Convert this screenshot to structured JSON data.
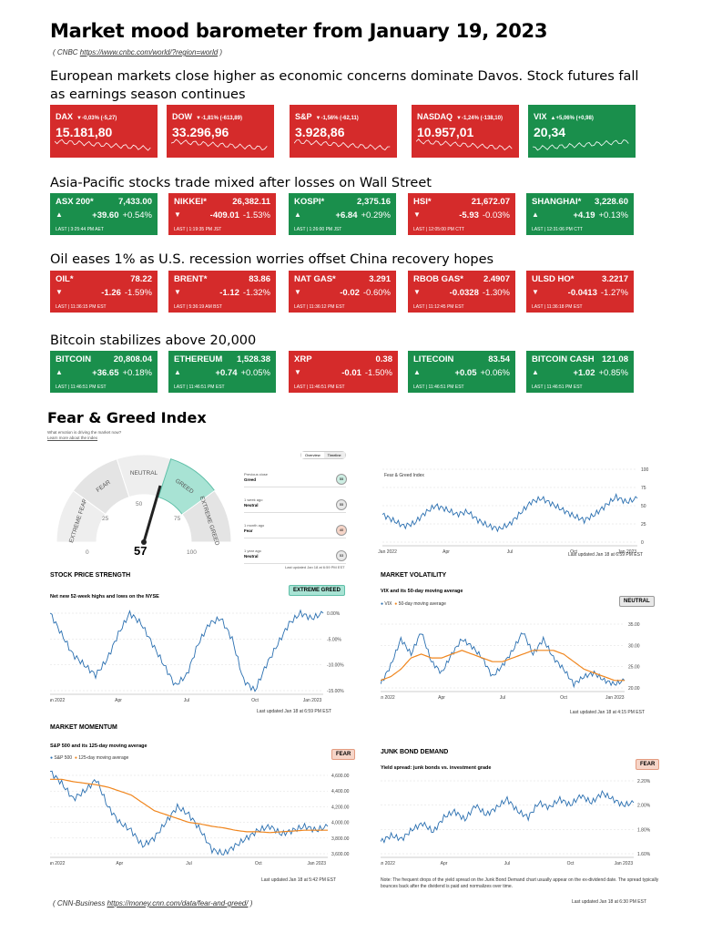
{
  "header": {
    "title": "Market mood barometer from January 19, 2023",
    "source_prefix": "( CNBC ",
    "source_url": "https://www.cnbc.com/world/?region=world",
    "source_suffix": " )"
  },
  "sections": {
    "europe": "European markets close higher as economic concerns dominate Davos. Stock futures fall as earnings season continues",
    "asia": "Asia-Pacific stocks trade mixed after losses on Wall Street",
    "oil": "Oil eases 1% as U.S. recession worries offset China recovery hopes",
    "bitcoin": "Bitcoin stabilizes above 20,000"
  },
  "indices": [
    {
      "name": "DAX",
      "change": "▼-0,03% (-5,27)",
      "value": "15.181,80",
      "color": "red"
    },
    {
      "name": "DOW",
      "change": "▼-1,81% (-613,89)",
      "value": "33.296,96",
      "color": "red"
    },
    {
      "name": "S&P",
      "change": "▼-1,56% (-62,11)",
      "value": "3.928,86",
      "color": "red"
    },
    {
      "name": "NASDAQ",
      "change": "▼-1,24% (-138,10)",
      "value": "10.957,01",
      "color": "red"
    },
    {
      "name": "VIX",
      "change": "▲+5,06% (+0,98)",
      "value": "20,34",
      "color": "green"
    }
  ],
  "asia": [
    {
      "name": "ASX 200*",
      "price": "7,433.00",
      "arrow": "▲",
      "chg": "+39.60",
      "pct": "+0.54%",
      "last": "LAST | 3:25:44 PM AET",
      "color": "green"
    },
    {
      "name": "NIKKEI*",
      "price": "26,382.11",
      "arrow": "▼",
      "chg": "-409.01",
      "pct": "-1.53%",
      "last": "LAST | 1:19:35 PM JST",
      "color": "red"
    },
    {
      "name": "KOSPI*",
      "price": "2,375.16",
      "arrow": "▲",
      "chg": "+6.84",
      "pct": "+0.29%",
      "last": "LAST | 1:26:00 PM JST",
      "color": "green"
    },
    {
      "name": "HSI*",
      "price": "21,672.07",
      "arrow": "▼",
      "chg": "-5.93",
      "pct": "-0.03%",
      "last": "LAST | 12:05:00 PM CTT",
      "color": "red"
    },
    {
      "name": "SHANGHAI*",
      "price": "3,228.60",
      "arrow": "▲",
      "chg": "+4.19",
      "pct": "+0.13%",
      "last": "LAST | 12:31:06 PM CTT",
      "color": "green"
    }
  ],
  "oil": [
    {
      "name": "OIL*",
      "price": "78.22",
      "arrow": "▼",
      "chg": "-1.26",
      "pct": "-1.59%",
      "last": "LAST | 11:36:15 PM EST",
      "color": "red"
    },
    {
      "name": "BRENT*",
      "price": "83.86",
      "arrow": "▼",
      "chg": "-1.12",
      "pct": "-1.32%",
      "last": "LAST | 5:36:19 AM BST",
      "color": "red"
    },
    {
      "name": "NAT GAS*",
      "price": "3.291",
      "arrow": "▼",
      "chg": "-0.02",
      "pct": "-0.60%",
      "last": "LAST | 11:36:12 PM EST",
      "color": "red"
    },
    {
      "name": "RBOB GAS*",
      "price": "2.4907",
      "arrow": "▼",
      "chg": "-0.0328",
      "pct": "-1.30%",
      "last": "LAST | 11:12:45 PM EST",
      "color": "red"
    },
    {
      "name": "ULSD HO*",
      "price": "3.2217",
      "arrow": "▼",
      "chg": "-0.0413",
      "pct": "-1.27%",
      "last": "LAST | 11:36:18 PM EST",
      "color": "red"
    }
  ],
  "crypto": [
    {
      "name": "BITCOIN",
      "price": "20,808.04",
      "arrow": "▲",
      "chg": "+36.65",
      "pct": "+0.18%",
      "last": "LAST | 11:46:51 PM EST",
      "color": "green"
    },
    {
      "name": "ETHEREUM",
      "price": "1,528.38",
      "arrow": "▲",
      "chg": "+0.74",
      "pct": "+0.05%",
      "last": "LAST | 11:46:51 PM EST",
      "color": "green"
    },
    {
      "name": "XRP",
      "price": "0.38",
      "arrow": "▼",
      "chg": "-0.01",
      "pct": "-1.50%",
      "last": "LAST | 11:46:51 PM EST",
      "color": "red"
    },
    {
      "name": "LITECOIN",
      "price": "83.54",
      "arrow": "▲",
      "chg": "+0.05",
      "pct": "+0.06%",
      "last": "LAST | 11:46:51 PM EST",
      "color": "green"
    },
    {
      "name": "BITCOIN CASH",
      "price": "121.08",
      "arrow": "▲",
      "chg": "+1.02",
      "pct": "+0.85%",
      "last": "LAST | 11:46:51 PM EST",
      "color": "green"
    }
  ],
  "fear_greed": {
    "title": "Fear & Greed Index",
    "question": "What emotion is driving the market now?",
    "learn": "Learn more about the index",
    "tabs": [
      "Overview",
      "Timeline"
    ],
    "score": "57",
    "zones": [
      "EXTREME FEAR",
      "FEAR",
      "NEUTRAL",
      "GREED",
      "EXTREME GREED"
    ],
    "scale": [
      "0",
      "25",
      "50",
      "75",
      "100"
    ],
    "history": [
      {
        "label": "Previous close",
        "status": "Greed",
        "value": "55"
      },
      {
        "label": "1 week ago",
        "status": "Neutral",
        "value": "55"
      },
      {
        "label": "1 month ago",
        "status": "Fear",
        "value": "40"
      },
      {
        "label": "1 year ago",
        "status": "Neutral",
        "value": "53"
      }
    ],
    "updated": "Last updated Jan 18 at 6:59 PM EST"
  },
  "colors": {
    "red": "#d52b2b",
    "green": "#1a8f4c",
    "blue": "#2a6fb0",
    "orange": "#f0861e",
    "teal": "#a8e3d4"
  },
  "chart_data": [
    {
      "type": "line",
      "title": "",
      "legend": [
        "Fear & Greed Index"
      ],
      "ylim": [
        0,
        100
      ],
      "yticks": [
        "100",
        "75",
        "50",
        "25",
        "0"
      ],
      "xticks": [
        "Jan 2022",
        "Apr",
        "Jul",
        "Oct",
        "Jan 2023"
      ],
      "updated": "Last updated Jan 18 at 6:59 PM EST",
      "x": [
        0,
        1,
        2,
        3,
        4,
        5,
        6,
        7,
        8,
        9,
        10,
        11,
        12,
        13,
        14,
        15,
        16,
        17,
        18,
        19,
        20,
        21,
        22,
        23,
        24
      ],
      "values": [
        38,
        30,
        22,
        26,
        40,
        50,
        45,
        38,
        42,
        30,
        22,
        18,
        25,
        40,
        55,
        60,
        52,
        44,
        36,
        30,
        38,
        50,
        62,
        55,
        60
      ]
    },
    {
      "type": "line",
      "title": "STOCK PRICE STRENGTH",
      "subtitle": "Net new 52-week highs and lows on the NYSE",
      "badge": "EXTREME GREED",
      "yticks": [
        "0.00%",
        "-5.00%",
        "-10.00%",
        "-15.00%"
      ],
      "xticks": [
        "Jan 2022",
        "Apr",
        "Jul",
        "Oct",
        "Jan 2023"
      ],
      "updated": "Last updated Jan 18 at 6:59 PM EST",
      "x": [
        0,
        1,
        2,
        3,
        4,
        5,
        6,
        7,
        8,
        9,
        10,
        11,
        12,
        13,
        14,
        15,
        16,
        17,
        18,
        19,
        20,
        21,
        22,
        23,
        24
      ],
      "values": [
        0,
        -4,
        -8,
        -10,
        -12,
        -9,
        -4,
        0,
        -2,
        -6,
        -10,
        -14,
        -12,
        -6,
        -2,
        -1,
        -5,
        -13,
        -15,
        -10,
        -6,
        -2,
        0,
        -1,
        0
      ]
    },
    {
      "type": "line",
      "title": "MARKET VOLATILITY",
      "subtitle": "VIX and its 50-day moving average",
      "badge": "NEUTRAL",
      "series": [
        {
          "name": "VIX",
          "values": [
            19,
            24,
            31,
            27,
            33,
            25,
            22,
            27,
            31,
            29,
            26,
            21,
            24,
            28,
            33,
            27,
            31,
            26,
            23,
            19,
            21,
            22,
            20,
            19,
            20
          ]
        },
        {
          "name": "50-day moving average",
          "values": [
            20,
            21,
            23,
            26,
            27,
            26,
            26,
            27,
            28,
            27,
            26,
            25,
            25,
            26,
            27,
            28,
            28,
            28,
            27,
            25,
            23,
            22,
            21,
            20,
            20
          ]
        }
      ],
      "yticks": [
        "35.00",
        "30.00",
        "25.00",
        "20.00"
      ],
      "xticks": [
        "Jan 2022",
        "Apr",
        "Jul",
        "Oct",
        "Jan 2023"
      ],
      "updated": "Last updated Jan 18 at 4:15 PM EST"
    },
    {
      "type": "line",
      "title": "MARKET MOMENTUM",
      "subtitle": "S&P 500 and its 125-day moving average",
      "badge": "FEAR",
      "series": [
        {
          "name": "S&P 500",
          "values": [
            4650,
            4500,
            4300,
            4400,
            4550,
            4200,
            4000,
            3900,
            3700,
            3800,
            4000,
            4200,
            4100,
            3900,
            3650,
            3600,
            3700,
            3800,
            3900,
            3950,
            3850,
            3900,
            3950,
            3900,
            3950
          ]
        },
        {
          "name": "125-day moving average",
          "values": [
            4550,
            4550,
            4520,
            4500,
            4480,
            4450,
            4400,
            4350,
            4250,
            4150,
            4100,
            4050,
            4000,
            3980,
            3950,
            3930,
            3900,
            3880,
            3880,
            3870,
            3880,
            3890,
            3900,
            3900,
            3900
          ]
        }
      ],
      "yticks": [
        "4,600.00",
        "4,400.00",
        "4,200.00",
        "4,000.00",
        "3,800.00",
        "3,600.00"
      ],
      "xticks": [
        "Jan 2022",
        "Apr",
        "Jul",
        "Oct",
        "Jan 2023"
      ],
      "updated": "Last updated Jan 18 at 5:42 PM EST"
    },
    {
      "type": "line",
      "title": "JUNK BOND DEMAND",
      "subtitle": "Yield spread: junk bonds vs. investment grade",
      "badge": "FEAR",
      "yticks": [
        "2.20%",
        "2.00%",
        "1.80%",
        "1.60%"
      ],
      "xticks": [
        "Jan 2022",
        "Apr",
        "Jul",
        "Oct",
        "Jan 2023"
      ],
      "updated": "Last updated Jan 18 at 6:30 PM EST",
      "x": [
        0,
        1,
        2,
        3,
        4,
        5,
        6,
        7,
        8,
        9,
        10,
        11,
        12,
        13,
        14,
        15,
        16,
        17,
        18,
        19,
        20,
        21,
        22,
        23,
        24
      ],
      "values": [
        1.7,
        1.75,
        1.72,
        1.8,
        1.85,
        1.78,
        1.9,
        1.95,
        1.88,
        2.0,
        1.92,
        1.98,
        2.05,
        1.95,
        1.9,
        2.02,
        1.98,
        2.05,
        2.0,
        2.08,
        2.02,
        2.1,
        2.05,
        2.0,
        2.02
      ]
    }
  ],
  "junk_note": "Note: The frequent drops of the yield spread on the Junk Bond Demand chart usually appear on the ex-dividend date. The spread typically bounces back after the dividend is paid and normalizes over time.",
  "footer": {
    "prefix": "( CNN-Business ",
    "url": "https://money.cnn.com/data/fear-and-greed/",
    "suffix": " )"
  }
}
